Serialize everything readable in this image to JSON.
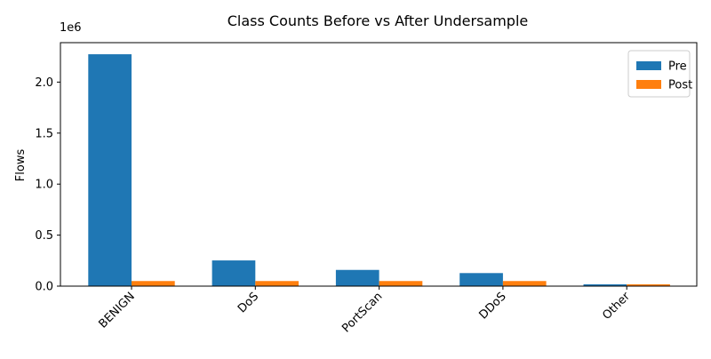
{
  "chart_data": {
    "type": "bar",
    "title": "Class Counts Before vs After Undersample",
    "xlabel": "",
    "ylabel": "Flows",
    "y_offset_label": "1e6",
    "categories": [
      "BENIGN",
      "DoS",
      "PortScan",
      "DDoS",
      "Other"
    ],
    "series": [
      {
        "name": "Pre",
        "color": "#1f77b4",
        "values": [
          2273000,
          252000,
          159000,
          128000,
          18000
        ]
      },
      {
        "name": "Post",
        "color": "#ff7f0e",
        "values": [
          50000,
          50000,
          50000,
          50000,
          18000
        ]
      }
    ],
    "ylim": [
      0,
      2386650
    ],
    "yticks": [
      0,
      500000,
      1000000,
      1500000,
      2000000
    ],
    "ytick_labels": [
      "0.0",
      "0.5",
      "1.0",
      "1.5",
      "2.0"
    ],
    "grid": false,
    "legend_position": "top-right"
  }
}
